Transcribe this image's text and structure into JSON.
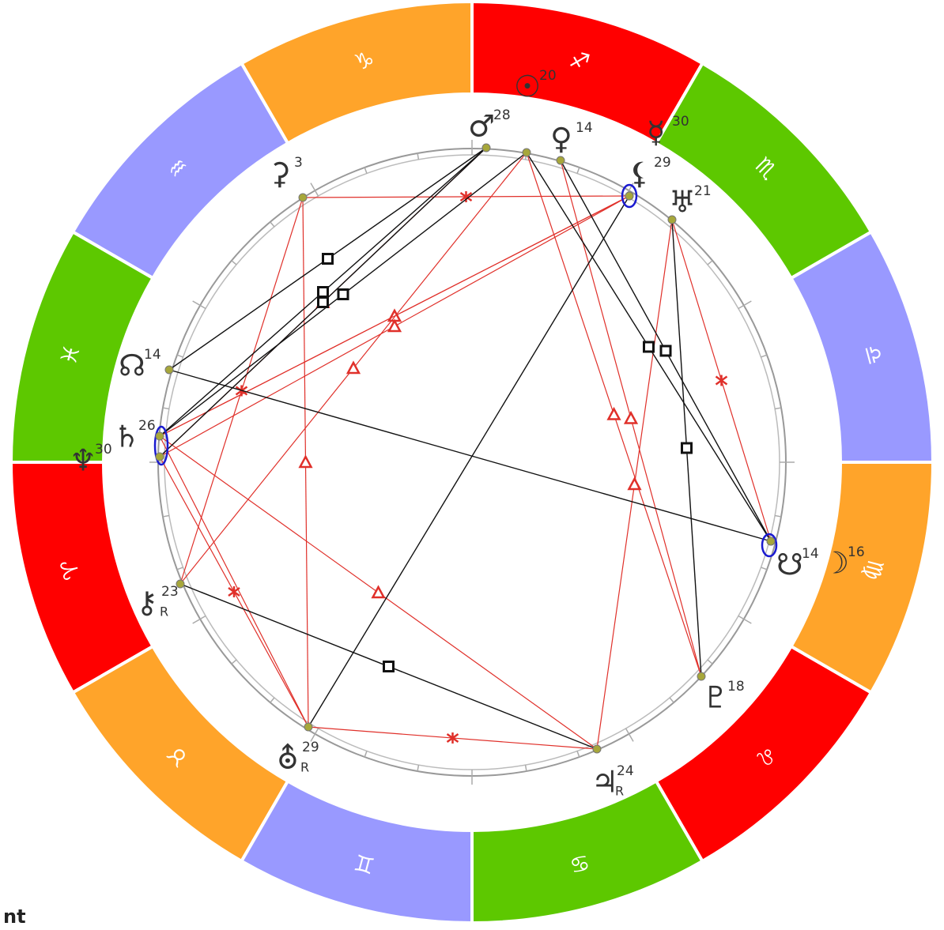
{
  "signs": [
    "♐",
    "♑",
    "♒",
    "♓",
    "♈",
    "♉",
    "♊",
    "♋",
    "♌",
    "♍",
    "♎",
    "♏"
  ],
  "planets": [
    {
      "glyph": "☉",
      "degree": "20"
    },
    {
      "glyph": "♂",
      "degree": "28"
    },
    {
      "glyph": "♀",
      "degree": "14"
    },
    {
      "glyph": "☿",
      "degree": "30"
    },
    {
      "glyph": "⚸",
      "degree": "29"
    },
    {
      "glyph": "♅",
      "degree": "21"
    },
    {
      "glyph": "⚳",
      "degree": "3"
    },
    {
      "glyph": "☊",
      "degree": "14"
    },
    {
      "glyph": "♄",
      "degree": "26"
    },
    {
      "glyph": "♆",
      "degree": "30"
    },
    {
      "glyph": "⚷",
      "degree": "23",
      "retrograde": "R"
    },
    {
      "glyph": "⛢",
      "degree": "29",
      "retrograde": "R"
    },
    {
      "glyph": "♃",
      "degree": "24",
      "retrograde": "R"
    },
    {
      "glyph": "♇",
      "degree": "18"
    },
    {
      "glyph": "☋",
      "degree": "14"
    },
    {
      "glyph": "☽",
      "degree": "16"
    }
  ],
  "footer_text": "nt"
}
